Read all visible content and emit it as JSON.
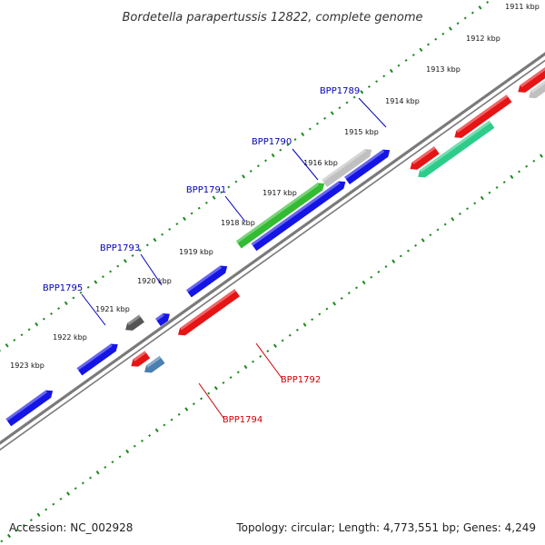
{
  "title": "Bordetella parapertussis 12822, complete genome",
  "accession": "Accession: NC_002928",
  "summary": "Topology: circular; Length: 4,773,551 bp; Genes: 4,249",
  "colors": {
    "background": "#ffffff",
    "backbone": "#7a7a7a",
    "tick": "#1a8a1a",
    "forward_label": "#0000bb",
    "reverse_label": "#cc0000",
    "blue": "#1414e6",
    "red": "#e61414",
    "green": "#33bb33",
    "gray": "#c0c0c0",
    "dark_gray": "#555555",
    "teal": "#2ecc8a",
    "steel": "#4a7fb0"
  },
  "tick_marks": [
    {
      "label": "1911 kbp"
    },
    {
      "label": "1912 kbp"
    },
    {
      "label": "1913 kbp"
    },
    {
      "label": "1914 kbp"
    },
    {
      "label": "1915 kbp"
    },
    {
      "label": "1916 kbp"
    },
    {
      "label": "1917 kbp"
    },
    {
      "label": "1918 kbp"
    },
    {
      "label": "1919 kbp"
    },
    {
      "label": "1920 kbp"
    },
    {
      "label": "1921 kbp"
    },
    {
      "label": "1922 kbp"
    },
    {
      "label": "1923 kbp"
    }
  ],
  "gene_labels": [
    {
      "name": "BPP1789",
      "strand": "forward"
    },
    {
      "name": "BPP1790",
      "strand": "forward"
    },
    {
      "name": "BPP1791",
      "strand": "forward"
    },
    {
      "name": "BPP1793",
      "strand": "forward"
    },
    {
      "name": "BPP1795",
      "strand": "forward"
    },
    {
      "name": "BPP1792",
      "strand": "reverse"
    },
    {
      "name": "BPP1794",
      "strand": "reverse"
    }
  ]
}
